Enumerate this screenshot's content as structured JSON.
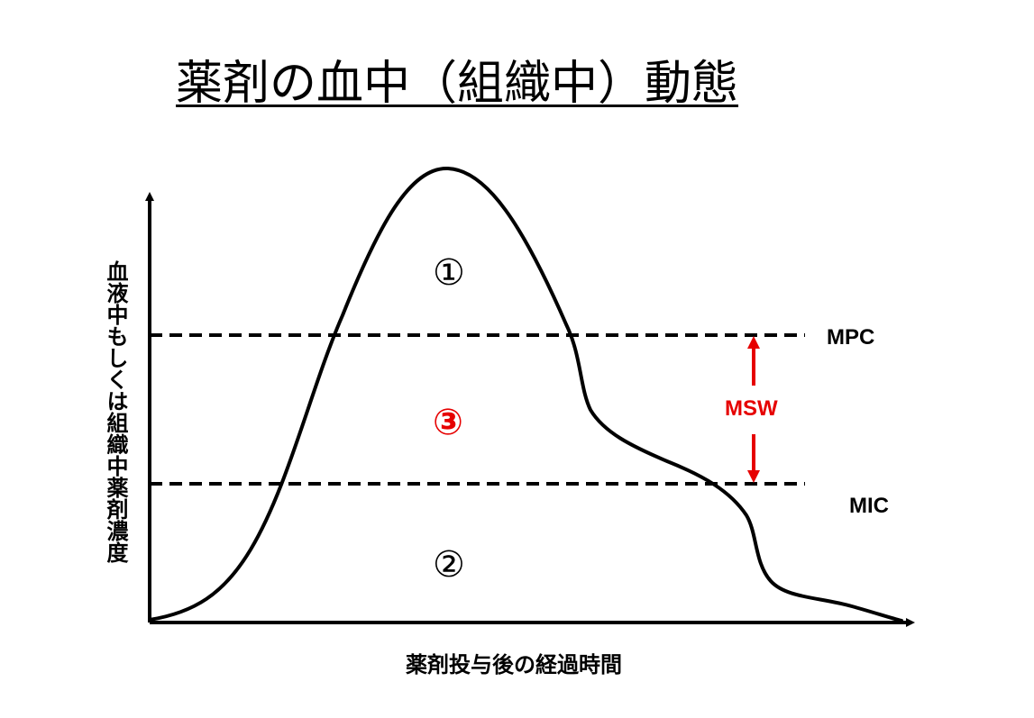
{
  "title": "薬剤の血中（組織中）動態",
  "axes": {
    "y_label": "血液中もしくは組織中薬剤濃度",
    "x_label": "薬剤投与後の経過時間"
  },
  "thresholds": {
    "upper": "MPC",
    "lower": "MIC"
  },
  "window_label": "MSW",
  "regions": {
    "above_upper": "①",
    "below_lower": "②",
    "between": "③"
  },
  "colors": {
    "line": "#000000",
    "accent": "#e60000"
  }
}
